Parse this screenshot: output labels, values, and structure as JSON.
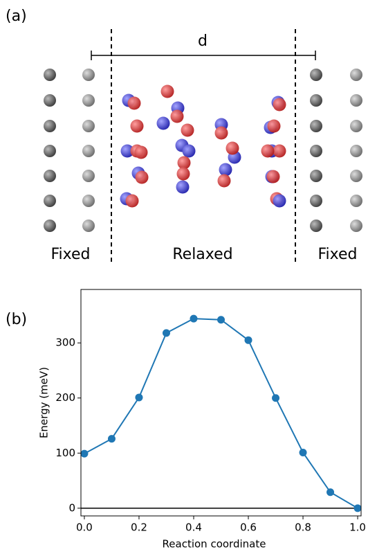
{
  "figure": {
    "panel_a_label": "(a)",
    "distance_label": "d",
    "left_region": "Fixed",
    "middle_region": "Relaxed",
    "right_region": "Fixed",
    "panel_b_label": "(b)"
  },
  "chart_data": {
    "type": "line",
    "xlabel": "Reaction coordinate",
    "ylabel": "Energy (meV)",
    "x": [
      0.0,
      0.1,
      0.2,
      0.3,
      0.4,
      0.5,
      0.6,
      0.7,
      0.8,
      0.9,
      1.0
    ],
    "series": [
      {
        "color": "#1f77b4",
        "values": [
          99,
          126,
          201,
          318,
          344,
          342,
          305,
          200,
          101,
          29,
          0
        ]
      }
    ],
    "xlim": [
      -0.0125,
      1.0125
    ],
    "ylim": [
      -14,
      397
    ],
    "xticks": [
      {
        "value": 0,
        "label": "0.0"
      },
      0.2,
      0.4,
      0.6,
      0.8,
      {
        "value": 1,
        "label": "1.0"
      }
    ],
    "yticks": [
      0,
      100,
      200,
      300
    ],
    "hline": 0
  }
}
